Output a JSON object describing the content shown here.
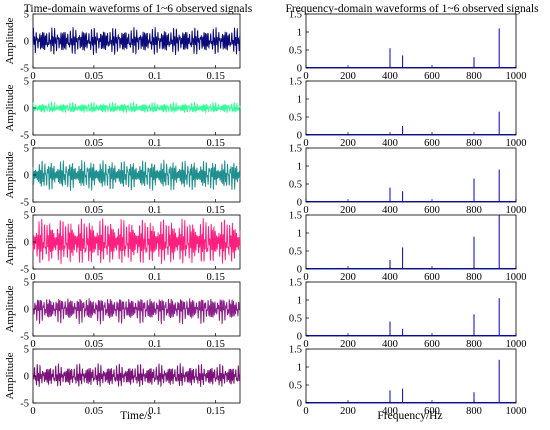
{
  "chart_data": [
    {
      "type": "line",
      "title": "Time-domain waveforms of 1~6 observed signals",
      "ylabel": "Amplitude",
      "xlabel": "Time/s",
      "xlim": [
        0,
        0.17
      ],
      "ylim": [
        -5,
        5
      ],
      "xticks": [
        "0",
        "0.05",
        "0.1",
        "0.15"
      ],
      "yticks": [
        "-5",
        "0",
        "5"
      ],
      "grid": false,
      "series": [
        {
          "color": "#0a0a7a",
          "amplitude": 1.5
        },
        {
          "color": "#33ff99",
          "amplitude": 0.6
        },
        {
          "color": "#1f8f8f",
          "amplitude": 1.7
        },
        {
          "color": "#ff1f7f",
          "amplitude": 2.6
        },
        {
          "color": "#8a1f8a",
          "amplitude": 1.5
        },
        {
          "color": "#7a127a",
          "amplitude": 1.3
        }
      ]
    },
    {
      "type": "line",
      "title": "Frequency-domain waveforms of 1~6 observed signals",
      "xlabel": "Frequency/Hz",
      "xlim": [
        0,
        1000
      ],
      "ylim": [
        0,
        1.5
      ],
      "xticks": [
        "0",
        "200",
        "400",
        "600",
        "800",
        "1000"
      ],
      "yticks": [
        "0",
        "0.5",
        "1",
        "1.5"
      ],
      "grid": false,
      "line_color": "#0000cc",
      "peak_frequencies": [
        400,
        460,
        800,
        920
      ],
      "series": [
        {
          "peaks": [
            0.55,
            0.35,
            0.3,
            1.1
          ]
        },
        {
          "peaks": [
            0.02,
            0.25,
            0.02,
            0.65
          ]
        },
        {
          "peaks": [
            0.4,
            0.3,
            0.65,
            0.9
          ]
        },
        {
          "peaks": [
            0.25,
            0.6,
            0.9,
            1.5
          ]
        },
        {
          "peaks": [
            0.4,
            0.2,
            0.6,
            1.05
          ]
        },
        {
          "peaks": [
            0.35,
            0.4,
            0.3,
            1.2
          ]
        }
      ]
    }
  ]
}
